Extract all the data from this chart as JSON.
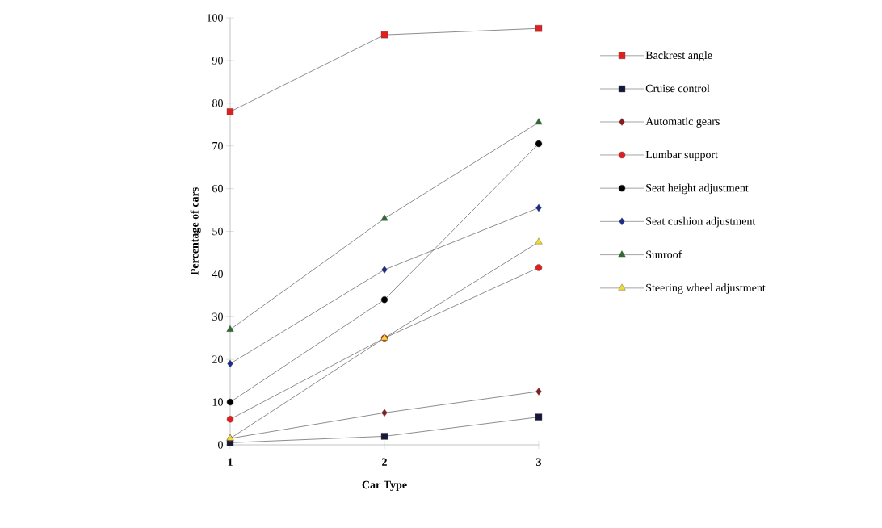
{
  "chart_data": {
    "type": "line",
    "xlabel": "Car Type",
    "ylabel": "Percentage of cars",
    "x": [
      1,
      2,
      3
    ],
    "xlim": [
      1,
      3
    ],
    "xticks": [
      1,
      2,
      3
    ],
    "ylim": [
      0,
      100
    ],
    "yticks": [
      0,
      10,
      20,
      30,
      40,
      50,
      60,
      70,
      80,
      90,
      100
    ],
    "grid": false,
    "legend": "right",
    "line_style": "solid",
    "series": [
      {
        "name": "Backrest angle",
        "color": "#e01f1f",
        "marker": "square",
        "values": [
          78,
          96,
          97.5
        ]
      },
      {
        "name": "Cruise control",
        "color": "#15183a",
        "marker": "square",
        "values": [
          0.5,
          2,
          6.5
        ]
      },
      {
        "name": "Automatic gears",
        "color": "#8a1a1e",
        "marker": "diamond",
        "values": [
          1.5,
          7.5,
          12.5
        ]
      },
      {
        "name": "Lumbar support",
        "color": "#e31c1c",
        "marker": "circle",
        "values": [
          6,
          25,
          41.5
        ]
      },
      {
        "name": "Seat height adjustment",
        "color": "#000000",
        "marker": "circle",
        "values": [
          10,
          34,
          70.5
        ]
      },
      {
        "name": "Seat cushion adjustment",
        "color": "#1c2c8c",
        "marker": "diamond",
        "values": [
          19,
          41,
          55.5
        ]
      },
      {
        "name": "Sunroof",
        "color": "#2f6a2f",
        "marker": "triangle",
        "values": [
          27,
          53,
          75.5
        ]
      },
      {
        "name": "Steering wheel adjustment",
        "color": "#f0dc30",
        "marker": "triangle",
        "values": [
          1.5,
          25,
          47.5
        ]
      }
    ]
  }
}
